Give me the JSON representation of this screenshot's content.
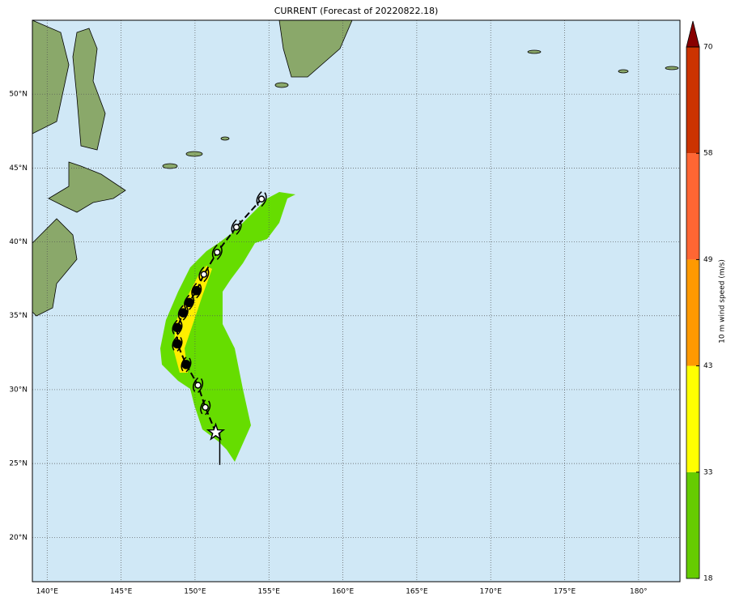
{
  "map": {
    "title": "CURRENT (Forecast of 20220822.18)",
    "xlim": [
      139.0,
      182.8
    ],
    "ylim": [
      17.0,
      55.0
    ],
    "lon_ticks": [
      {
        "value": 140,
        "label": "140°E"
      },
      {
        "value": 145,
        "label": "145°E"
      },
      {
        "value": 150,
        "label": "150°E"
      },
      {
        "value": 155,
        "label": "155°E"
      },
      {
        "value": 160,
        "label": "160°E"
      },
      {
        "value": 165,
        "label": "165°E"
      },
      {
        "value": 170,
        "label": "170°E"
      },
      {
        "value": 175,
        "label": "175°E"
      },
      {
        "value": 180,
        "label": "180°"
      }
    ],
    "lat_ticks": [
      {
        "value": 20,
        "label": "20°N"
      },
      {
        "value": 25,
        "label": "25°N"
      },
      {
        "value": 30,
        "label": "30°N"
      },
      {
        "value": 35,
        "label": "35°N"
      },
      {
        "value": 40,
        "label": "40°N"
      },
      {
        "value": 45,
        "label": "45°N"
      },
      {
        "value": 50,
        "label": "50°N"
      }
    ],
    "track": {
      "lat": [
        27.1,
        28.8,
        30.3,
        31.7,
        33.1,
        34.2,
        35.2,
        35.9,
        36.7,
        37.8,
        39.3,
        41.0,
        42.9
      ],
      "lon": [
        151.4,
        150.7,
        150.2,
        149.4,
        148.8,
        148.8,
        149.2,
        149.6,
        150.1,
        150.6,
        151.5,
        152.8,
        154.5
      ]
    },
    "colorbar": {
      "label": "10 m wind speed (m/s)",
      "ticks": [
        18,
        33,
        43,
        49,
        58,
        70
      ],
      "colors": [
        "#66cc00",
        "#ffff00",
        "#ff9900",
        "#ff6633",
        "#cc3300"
      ],
      "extend_color": "#880000"
    }
  }
}
